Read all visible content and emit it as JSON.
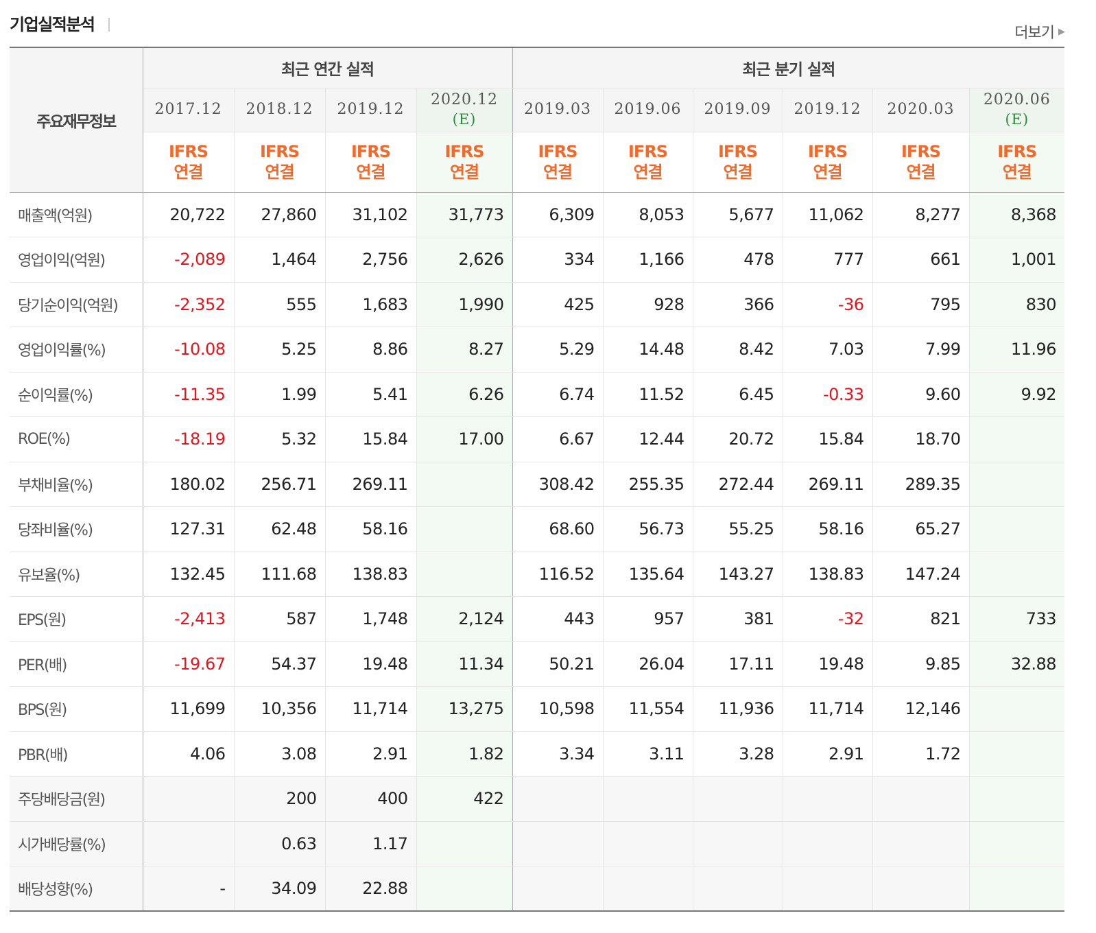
{
  "header": {
    "title": "기업실적분석",
    "more_label": "더보기"
  },
  "table": {
    "corner_label": "주요재무정보",
    "annual_group_label": "최근 연간 실적",
    "quarter_group_label": "최근 분기 실적",
    "annual_dates": [
      {
        "date": "2017.12",
        "estimate": ""
      },
      {
        "date": "2018.12",
        "estimate": ""
      },
      {
        "date": "2019.12",
        "estimate": ""
      },
      {
        "date": "2020.12",
        "estimate": "(E)"
      }
    ],
    "quarter_dates": [
      {
        "date": "2019.03",
        "estimate": ""
      },
      {
        "date": "2019.06",
        "estimate": ""
      },
      {
        "date": "2019.09",
        "estimate": ""
      },
      {
        "date": "2019.12",
        "estimate": ""
      },
      {
        "date": "2020.03",
        "estimate": ""
      },
      {
        "date": "2020.06",
        "estimate": "(E)"
      }
    ],
    "ifrs_line1": "IFRS",
    "ifrs_line2": "연결",
    "rows": [
      {
        "label": "매출액(억원)",
        "values": [
          "20,722",
          "27,860",
          "31,102",
          "31,773",
          "6,309",
          "8,053",
          "5,677",
          "11,062",
          "8,277",
          "8,368"
        ]
      },
      {
        "label": "영업이익(억원)",
        "values": [
          "-2,089",
          "1,464",
          "2,756",
          "2,626",
          "334",
          "1,166",
          "478",
          "777",
          "661",
          "1,001"
        ]
      },
      {
        "label": "당기순이익(억원)",
        "values": [
          "-2,352",
          "555",
          "1,683",
          "1,990",
          "425",
          "928",
          "366",
          "-36",
          "795",
          "830"
        ]
      },
      {
        "label": "영업이익률(%)",
        "values": [
          "-10.08",
          "5.25",
          "8.86",
          "8.27",
          "5.29",
          "14.48",
          "8.42",
          "7.03",
          "7.99",
          "11.96"
        ]
      },
      {
        "label": "순이익률(%)",
        "values": [
          "-11.35",
          "1.99",
          "5.41",
          "6.26",
          "6.74",
          "11.52",
          "6.45",
          "-0.33",
          "9.60",
          "9.92"
        ]
      },
      {
        "label": "ROE(%)",
        "values": [
          "-18.19",
          "5.32",
          "15.84",
          "17.00",
          "6.67",
          "12.44",
          "20.72",
          "15.84",
          "18.70",
          ""
        ]
      },
      {
        "label": "부채비율(%)",
        "values": [
          "180.02",
          "256.71",
          "269.11",
          "",
          "308.42",
          "255.35",
          "272.44",
          "269.11",
          "289.35",
          ""
        ]
      },
      {
        "label": "당좌비율(%)",
        "values": [
          "127.31",
          "62.48",
          "58.16",
          "",
          "68.60",
          "56.73",
          "55.25",
          "58.16",
          "65.27",
          ""
        ]
      },
      {
        "label": "유보율(%)",
        "values": [
          "132.45",
          "111.68",
          "138.83",
          "",
          "116.52",
          "135.64",
          "143.27",
          "138.83",
          "147.24",
          ""
        ]
      },
      {
        "label": "EPS(원)",
        "values": [
          "-2,413",
          "587",
          "1,748",
          "2,124",
          "443",
          "957",
          "381",
          "-32",
          "821",
          "733"
        ]
      },
      {
        "label": "PER(배)",
        "values": [
          "-19.67",
          "54.37",
          "19.48",
          "11.34",
          "50.21",
          "26.04",
          "17.11",
          "19.48",
          "9.85",
          "32.88"
        ]
      },
      {
        "label": "BPS(원)",
        "values": [
          "11,699",
          "10,356",
          "11,714",
          "13,275",
          "10,598",
          "11,554",
          "11,936",
          "11,714",
          "12,146",
          ""
        ]
      },
      {
        "label": "PBR(배)",
        "values": [
          "4.06",
          "3.08",
          "2.91",
          "1.82",
          "3.34",
          "3.11",
          "3.28",
          "2.91",
          "1.72",
          ""
        ]
      },
      {
        "label": "주당배당금(원)",
        "values": [
          "",
          "200",
          "400",
          "422",
          "",
          "",
          "",
          "",
          "",
          ""
        ]
      },
      {
        "label": "시가배당률(%)",
        "values": [
          "",
          "0.63",
          "1.17",
          "",
          "",
          "",
          "",
          "",
          "",
          ""
        ]
      },
      {
        "label": "배당성향(%)",
        "values": [
          "-",
          "34.09",
          "22.88",
          "",
          "",
          "",
          "",
          "",
          "",
          ""
        ]
      }
    ]
  },
  "colors": {
    "negative": "#e8141b",
    "ifrs": "#f06a2c",
    "estimate": "#2f8a3c",
    "estimate_bg": "#f3f9f3"
  }
}
